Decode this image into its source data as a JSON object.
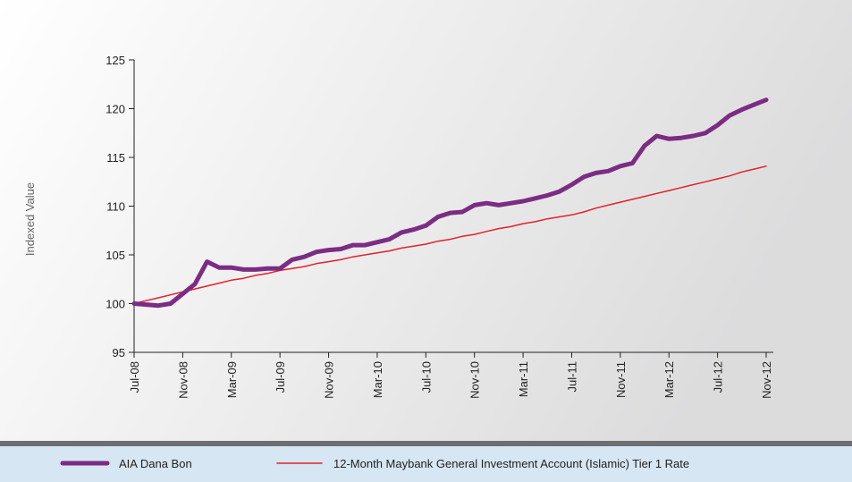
{
  "chart_data": {
    "type": "line",
    "ylabel": "Indexed Value",
    "categories": [
      "Jul-08",
      null,
      null,
      null,
      "Nov-08",
      null,
      null,
      null,
      "Mar-09",
      null,
      null,
      null,
      "Jul-09",
      null,
      null,
      null,
      "Nov-09",
      null,
      null,
      null,
      "Mar-10",
      null,
      null,
      null,
      "Jul-10",
      null,
      null,
      null,
      "Nov-10",
      null,
      null,
      null,
      "Mar-11",
      null,
      null,
      null,
      "Jul-11",
      null,
      null,
      null,
      "Nov-11",
      null,
      null,
      null,
      "Mar-12",
      null,
      null,
      null,
      "Jul-12",
      null,
      null,
      null,
      "Nov-12"
    ],
    "series": [
      {
        "name": "AIA Dana Bon",
        "color": "#7b2c83",
        "width": 5,
        "values": [
          100,
          99.9,
          99.8,
          100,
          101,
          102,
          104.3,
          103.7,
          103.7,
          103.5,
          103.5,
          103.6,
          103.6,
          104.5,
          104.8,
          105.3,
          105.5,
          105.6,
          106,
          106,
          106.3,
          106.6,
          107.3,
          107.6,
          108,
          108.9,
          109.3,
          109.4,
          110.1,
          110.3,
          110.1,
          110.3,
          110.5,
          110.8,
          111.1,
          111.5,
          112.2,
          113,
          113.4,
          113.6,
          114.1,
          114.4,
          116.2,
          117.2,
          116.9,
          117,
          117.2,
          117.5,
          118.3,
          119.3,
          119.9,
          120.4,
          120.9
        ]
      },
      {
        "name": "12-Month Maybank General Investment Account (Islamic) Tier 1 Rate",
        "color": "#e4202a",
        "width": 1.5,
        "values": [
          100,
          100.3,
          100.6,
          100.9,
          101.2,
          101.5,
          101.8,
          102.1,
          102.4,
          102.6,
          102.9,
          103.1,
          103.4,
          103.6,
          103.8,
          104.1,
          104.3,
          104.5,
          104.8,
          105,
          105.2,
          105.4,
          105.7,
          105.9,
          106.1,
          106.4,
          106.6,
          106.9,
          107.1,
          107.4,
          107.7,
          107.9,
          108.2,
          108.4,
          108.7,
          108.9,
          109.1,
          109.4,
          109.8,
          110.1,
          110.4,
          110.7,
          111,
          111.3,
          111.6,
          111.9,
          112.2,
          112.5,
          112.8,
          113.1,
          113.5,
          113.8,
          114.1
        ]
      }
    ],
    "ylim": [
      95,
      125
    ],
    "yticks": [
      95,
      100,
      105,
      110,
      115,
      120,
      125
    ],
    "grid": false,
    "legend": "bottom"
  }
}
